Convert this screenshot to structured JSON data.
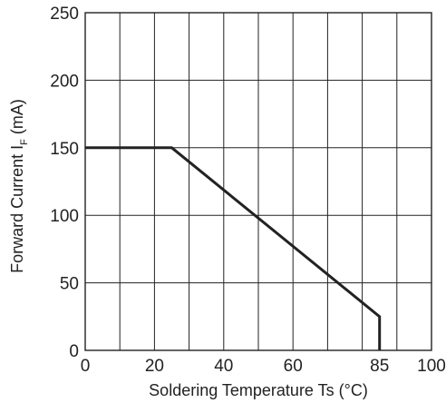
{
  "chart_data": {
    "type": "line",
    "title": "",
    "xlabel": "Soldering Temperature Ts (°C)",
    "ylabel": {
      "prefix": "Forward Current  I",
      "subscript": "F",
      "suffix": " (mA)"
    },
    "xlim": [
      0,
      100
    ],
    "ylim": [
      0,
      250
    ],
    "x_ticks": [
      0,
      10,
      20,
      30,
      40,
      50,
      60,
      70,
      80,
      90,
      100
    ],
    "x_tick_labels": [
      {
        "value": 0,
        "label": "0"
      },
      {
        "value": 20,
        "label": "20"
      },
      {
        "value": 40,
        "label": "40"
      },
      {
        "value": 60,
        "label": "60"
      },
      {
        "value": 85,
        "label": "85"
      },
      {
        "value": 100,
        "label": "100"
      }
    ],
    "y_ticks": [
      0,
      50,
      100,
      150,
      200,
      250
    ],
    "y_tick_labels": [
      "0",
      "50",
      "100",
      "150",
      "200",
      "250"
    ],
    "grid": true,
    "legend": "none",
    "colors": {
      "line": "#222222",
      "grid": "#222222",
      "text": "#222222",
      "background": "#ffffff"
    },
    "series": [
      {
        "x": [
          0,
          25,
          85,
          85
        ],
        "y": [
          150,
          150,
          25,
          0
        ]
      }
    ]
  }
}
